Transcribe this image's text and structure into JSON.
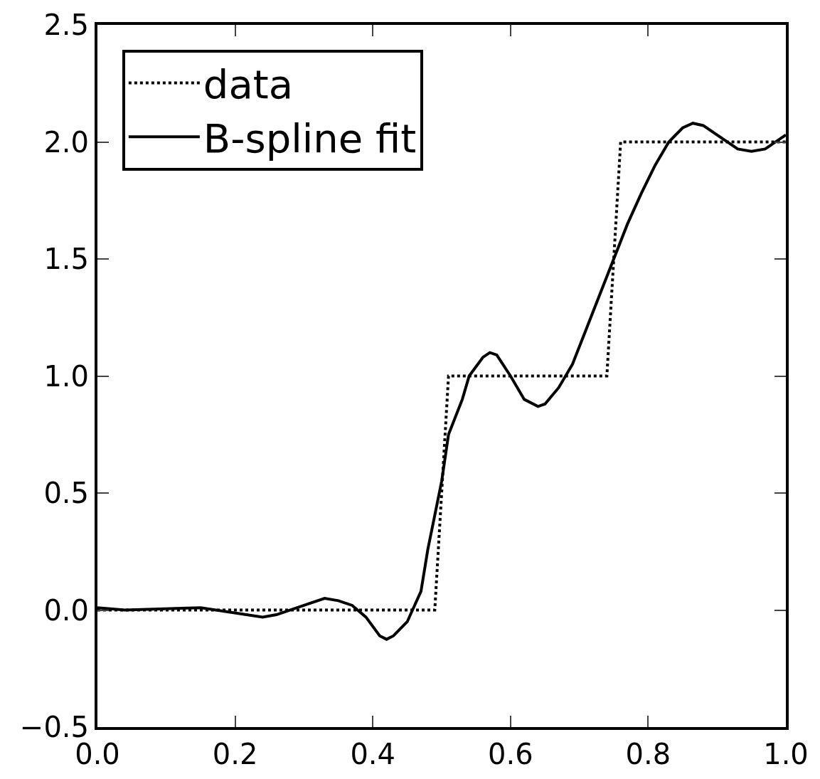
{
  "chart_data": {
    "type": "line",
    "series": [
      {
        "name": "data",
        "color": "#000000",
        "line_style": "dotted",
        "x": [
          0,
          0.49,
          0.51,
          0.74,
          0.76,
          1.0
        ],
        "values": [
          0,
          0,
          1,
          1,
          2,
          2
        ]
      },
      {
        "name": "B-spline fit",
        "color": "#000000",
        "line_style": "solid",
        "x": [
          0,
          0.04,
          0.15,
          0.24,
          0.26,
          0.3,
          0.33,
          0.35,
          0.37,
          0.39,
          0.41,
          0.42,
          0.43,
          0.45,
          0.47,
          0.48,
          0.5,
          0.51,
          0.53,
          0.54,
          0.56,
          0.57,
          0.58,
          0.6,
          0.62,
          0.64,
          0.65,
          0.67,
          0.69,
          0.71,
          0.73,
          0.75,
          0.77,
          0.79,
          0.81,
          0.83,
          0.85,
          0.865,
          0.88,
          0.9,
          0.93,
          0.95,
          0.97,
          1.0
        ],
        "values": [
          0.01,
          0.0,
          0.01,
          -0.03,
          -0.02,
          0.02,
          0.05,
          0.04,
          0.02,
          -0.03,
          -0.11,
          -0.125,
          -0.11,
          -0.05,
          0.08,
          0.26,
          0.55,
          0.75,
          0.9,
          1.0,
          1.08,
          1.1,
          1.09,
          1.0,
          0.9,
          0.87,
          0.88,
          0.95,
          1.05,
          1.2,
          1.35,
          1.5,
          1.65,
          1.78,
          1.9,
          2.0,
          2.06,
          2.08,
          2.07,
          2.03,
          1.97,
          1.96,
          1.97,
          2.03
        ]
      }
    ],
    "xlim": [
      0,
      1.0
    ],
    "ylim": [
      -0.5,
      2.5
    ],
    "xticks": [
      {
        "value": 0,
        "label": "0.0"
      },
      0.2,
      0.4,
      0.6,
      0.8,
      {
        "value": 1,
        "label": "1.0"
      }
    ],
    "yticks": [
      {
        "value": -0.5,
        "label": "−0.5"
      },
      {
        "value": 0,
        "label": "0.0"
      },
      0.5,
      {
        "value": 1,
        "label": "1.0"
      },
      1.5,
      {
        "value": 2,
        "label": "2.0"
      },
      2.5
    ],
    "legend": "top left",
    "marker": "none"
  }
}
